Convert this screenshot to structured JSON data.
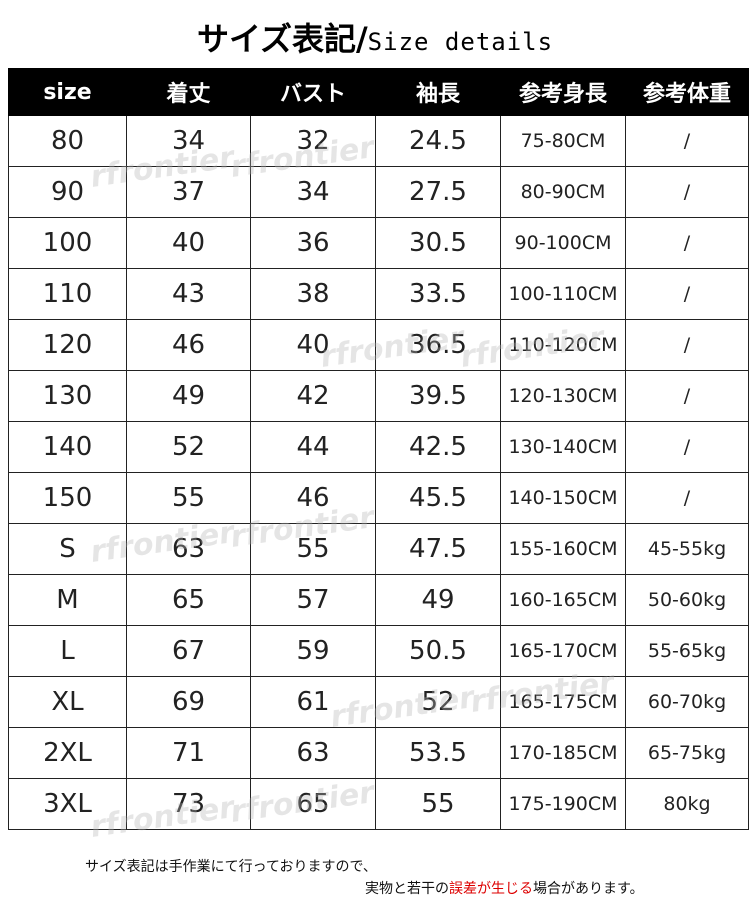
{
  "header": {
    "title": "サイズ表記/",
    "subtitle": "Size details"
  },
  "table": {
    "columns": [
      "size",
      "着丈",
      "バスト",
      "袖長",
      "参考身長",
      "参考体重"
    ],
    "rows": [
      [
        "80",
        "34",
        "32",
        "24.5",
        "75-80CM",
        "/"
      ],
      [
        "90",
        "37",
        "34",
        "27.5",
        "80-90CM",
        "/"
      ],
      [
        "100",
        "40",
        "36",
        "30.5",
        "90-100CM",
        "/"
      ],
      [
        "110",
        "43",
        "38",
        "33.5",
        "100-110CM",
        "/"
      ],
      [
        "120",
        "46",
        "40",
        "36.5",
        "110-120CM",
        "/"
      ],
      [
        "130",
        "49",
        "42",
        "39.5",
        "120-130CM",
        "/"
      ],
      [
        "140",
        "52",
        "44",
        "42.5",
        "130-140CM",
        "/"
      ],
      [
        "150",
        "55",
        "46",
        "45.5",
        "140-150CM",
        "/"
      ],
      [
        "S",
        "63",
        "55",
        "47.5",
        "155-160CM",
        "45-55kg"
      ],
      [
        "M",
        "65",
        "57",
        "49",
        "160-165CM",
        "50-60kg"
      ],
      [
        "L",
        "67",
        "59",
        "50.5",
        "165-170CM",
        "55-65kg"
      ],
      [
        "XL",
        "69",
        "61",
        "52",
        "165-175CM",
        "60-70kg"
      ],
      [
        "2XL",
        "71",
        "63",
        "53.5",
        "170-185CM",
        "65-75kg"
      ],
      [
        "3XL",
        "73",
        "65",
        "55",
        "175-190CM",
        "80kg"
      ]
    ]
  },
  "watermark": "rfrontier",
  "note": {
    "line1": "サイズ表記は手作業にて行っておりますので、",
    "line2": [
      "実物と若干の",
      "誤差が生じる",
      "場合があります。"
    ]
  }
}
